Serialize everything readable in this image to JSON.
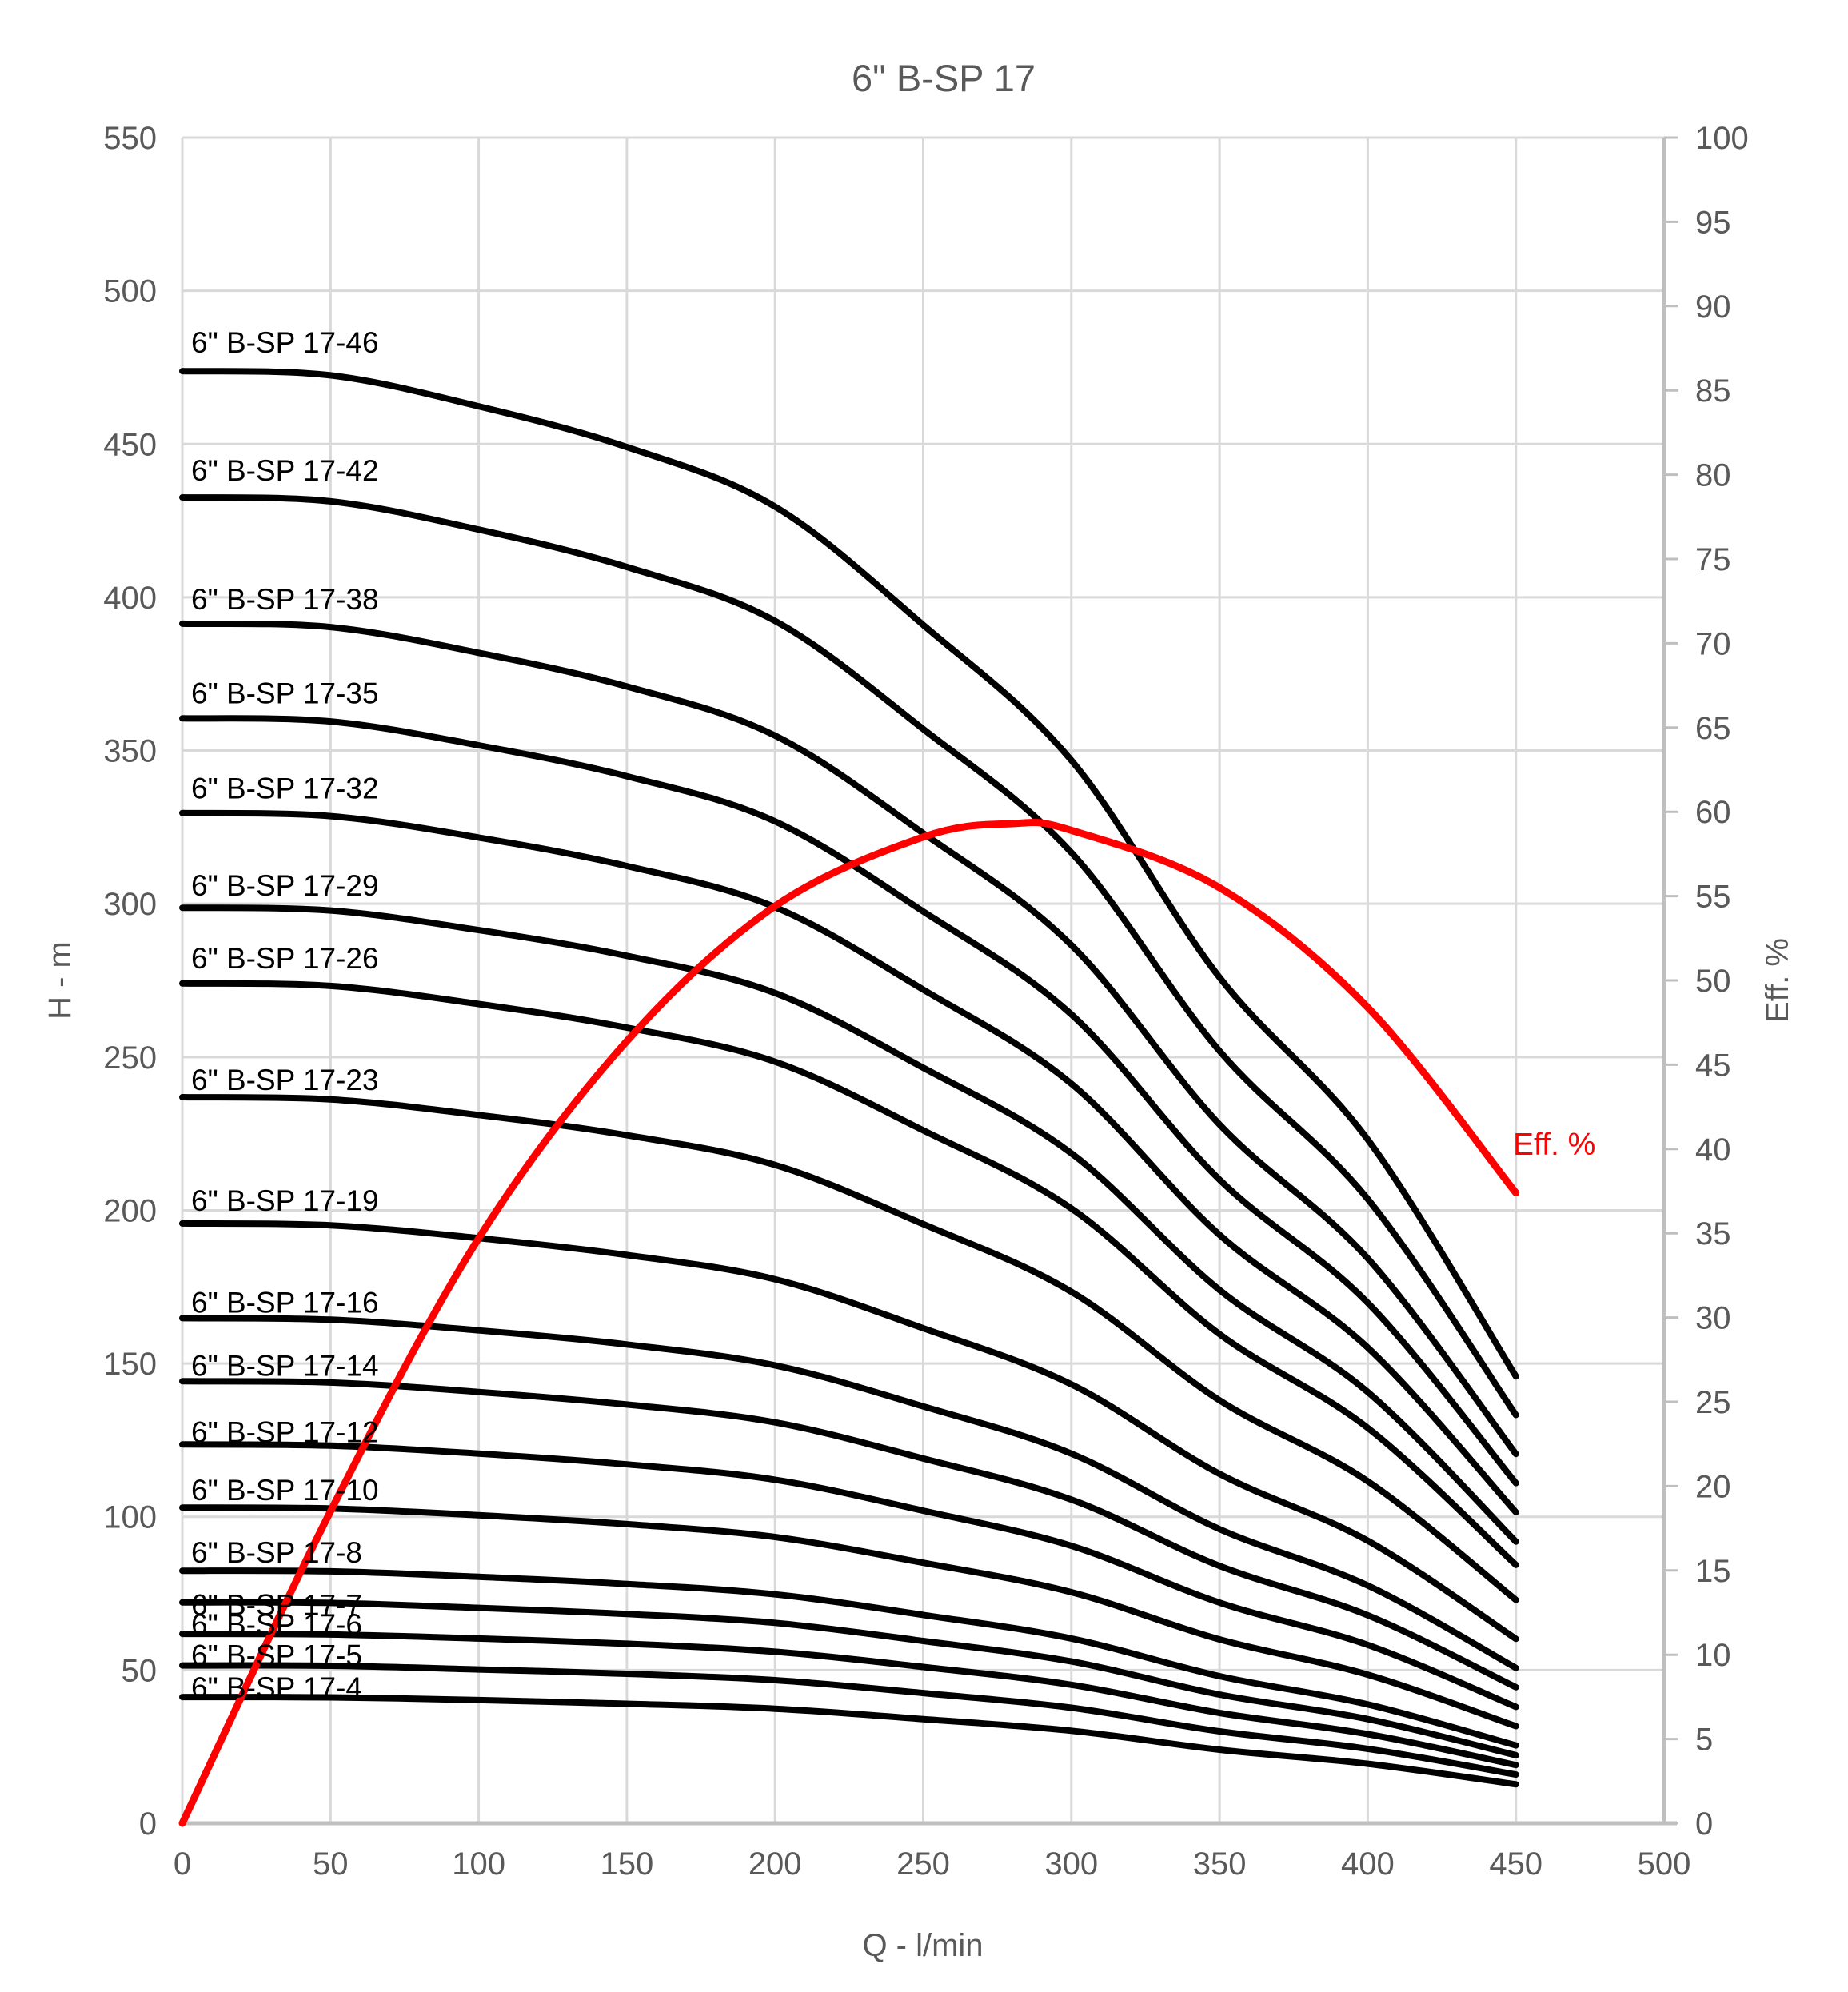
{
  "title": "6\" B-SP 17",
  "colors": {
    "background": "#FFFFFF",
    "curve": "#000000",
    "efficiency": "#FF0000",
    "grid": "#D9D9D9",
    "axis": "#BFBFBF",
    "text": "#595959",
    "curve_label_text": "#000000"
  },
  "chart_data": {
    "type": "line",
    "title": "6\" B-SP 17",
    "xlabel": "Q - l/min",
    "ylabel_left": "H - m",
    "ylabel_right": "Eff. %",
    "grid": true,
    "legend": "none (curves labeled inline)",
    "x_axis": {
      "min": 0,
      "max": 500,
      "ticks": [
        0,
        50,
        100,
        150,
        200,
        250,
        300,
        350,
        400,
        450,
        500
      ]
    },
    "y_axis_left": {
      "min": 0,
      "max": 550,
      "ticks": [
        0,
        50,
        100,
        150,
        200,
        250,
        300,
        350,
        400,
        450,
        500,
        550
      ]
    },
    "y_axis_right": {
      "min": 0,
      "max": 100,
      "ticks": [
        0,
        5,
        10,
        15,
        20,
        25,
        30,
        35,
        40,
        45,
        50,
        55,
        60,
        65,
        70,
        75,
        80,
        85,
        90,
        95,
        100
      ]
    },
    "q_samples": [
      0,
      50,
      100,
      150,
      200,
      250,
      300,
      350,
      400,
      450
    ],
    "series": [
      {
        "name": "6\" B-SP 17-46",
        "stages": 46,
        "label_offset": 36,
        "values": [
          473.8,
          472.4,
          462.3,
          449.0,
          429.6,
          391.0,
          346.8,
          276.0,
          223.1,
          145.8
        ]
      },
      {
        "name": "6\" B-SP 17-42",
        "stages": 42,
        "label_offset": 34,
        "values": [
          432.6,
          431.3,
          422.1,
          409.9,
          392.3,
          357.0,
          316.7,
          252.0,
          203.7,
          133.2
        ]
      },
      {
        "name": "6\" B-SP 17-38",
        "stages": 38,
        "label_offset": 31,
        "values": [
          391.4,
          390.3,
          381.9,
          370.9,
          354.9,
          323.0,
          286.5,
          228.0,
          184.3,
          120.5
        ]
      },
      {
        "name": "6\" B-SP 17-35",
        "stages": 35,
        "label_offset": 32,
        "values": [
          360.5,
          359.5,
          351.7,
          341.6,
          326.9,
          297.5,
          263.9,
          210.0,
          169.8,
          111.0
        ]
      },
      {
        "name": "6\" B-SP 17-32",
        "stages": 32,
        "label_offset": 31,
        "values": [
          329.6,
          328.6,
          321.6,
          312.3,
          298.9,
          272.0,
          241.3,
          192.0,
          155.2,
          101.5
        ]
      },
      {
        "name": "6\" B-SP 17-29",
        "stages": 29,
        "label_offset": 28,
        "values": [
          298.7,
          297.8,
          291.4,
          283.0,
          270.9,
          246.5,
          218.6,
          174.0,
          140.7,
          91.9
        ]
      },
      {
        "name": "6\" B-SP 17-26",
        "stages": 26,
        "label_offset": 32,
        "values": [
          274.0,
          273.2,
          267.3,
          259.6,
          248.5,
          226.1,
          200.6,
          159.6,
          129.0,
          84.3
        ]
      },
      {
        "name": "6\" B-SP 17-23",
        "stages": 23,
        "label_offset": 22,
        "values": [
          236.9,
          236.2,
          231.1,
          224.5,
          214.8,
          195.5,
          173.4,
          138.0,
          111.6,
          72.9
        ]
      },
      {
        "name": "6\" B-SP 17-19",
        "stages": 19,
        "label_offset": 29,
        "values": [
          195.7,
          195.1,
          190.9,
          185.4,
          177.5,
          161.5,
          143.2,
          114.0,
          92.2,
          60.2
        ]
      },
      {
        "name": "6\" B-SP 17-16",
        "stages": 16,
        "label_offset": 20,
        "values": [
          164.8,
          164.3,
          160.8,
          156.2,
          149.4,
          136.0,
          120.6,
          96.0,
          77.6,
          50.7
        ]
      },
      {
        "name": "6\" B-SP 17-14",
        "stages": 14,
        "label_offset": 20,
        "values": [
          144.2,
          143.8,
          140.7,
          136.6,
          130.8,
          119.0,
          105.6,
          84.0,
          67.9,
          44.4
        ]
      },
      {
        "name": "6\" B-SP 17-12",
        "stages": 12,
        "label_offset": 16,
        "values": [
          123.6,
          123.2,
          120.6,
          117.1,
          112.1,
          102.0,
          90.5,
          72.0,
          58.2,
          38.0
        ]
      },
      {
        "name": "6\" B-SP 17-10",
        "stages": 10,
        "label_offset": 22,
        "values": [
          103.0,
          102.7,
          100.5,
          97.6,
          93.4,
          85.0,
          75.4,
          60.0,
          48.5,
          31.7
        ]
      },
      {
        "name": "6\" B-SP 17-8",
        "stages": 8,
        "label_offset": 23,
        "values": [
          82.4,
          82.2,
          80.4,
          78.1,
          74.7,
          68.0,
          60.3,
          48.0,
          38.8,
          25.4
        ]
      },
      {
        "name": "6\" B-SP 17-7",
        "stages": 7,
        "label_offset": -3,
        "values": [
          72.1,
          71.9,
          70.3,
          68.3,
          65.4,
          59.5,
          52.8,
          42.0,
          34.0,
          22.2
        ]
      },
      {
        "name": "6\" B-SP 17-6",
        "stages": 6,
        "label_offset": 12,
        "values": [
          61.8,
          61.6,
          60.3,
          58.6,
          56.0,
          51.0,
          45.2,
          36.0,
          29.1,
          19.0
        ]
      },
      {
        "name": "6\" B-SP 17-5",
        "stages": 5,
        "label_offset": 13,
        "values": [
          51.5,
          51.4,
          50.2,
          48.8,
          46.7,
          42.5,
          37.7,
          30.0,
          24.3,
          15.9
        ]
      },
      {
        "name": "6\" B-SP 17-4",
        "stages": 4,
        "label_offset": 12,
        "values": [
          41.2,
          41.1,
          40.2,
          39.0,
          37.4,
          34.0,
          30.2,
          24.0,
          19.4,
          12.7
        ]
      }
    ],
    "efficiency_series": {
      "name": "Eff. %",
      "annotation": "Eff. %",
      "q": [
        0,
        50,
        100,
        150,
        200,
        250,
        280,
        300,
        350,
        400,
        450
      ],
      "values": [
        0,
        18.5,
        34.7,
        46.4,
        54.4,
        58.5,
        59.3,
        58.9,
        55.5,
        48.4,
        37.4
      ],
      "peak": {
        "q": 280,
        "eff": 59.3
      },
      "end": {
        "q": 450,
        "eff": 37.4
      }
    }
  }
}
